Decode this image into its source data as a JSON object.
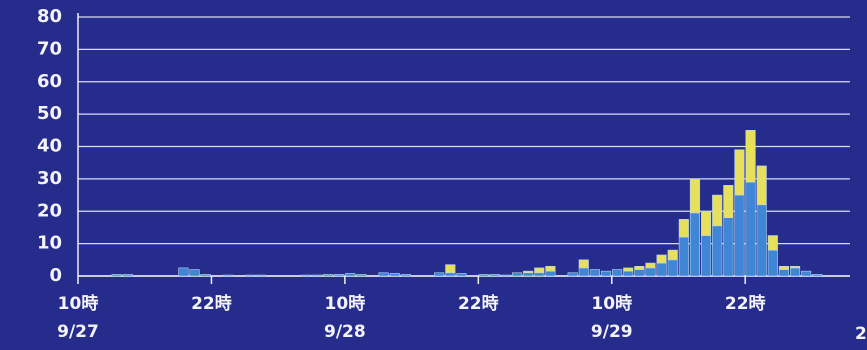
{
  "chart_data": {
    "type": "stacked_bar",
    "categories": [
      "10時",
      null,
      null,
      null,
      null,
      null,
      null,
      null,
      null,
      null,
      null,
      null,
      "22時",
      null,
      null,
      null,
      null,
      null,
      null,
      null,
      null,
      null,
      null,
      null,
      "10時",
      null,
      null,
      null,
      null,
      null,
      null,
      null,
      null,
      null,
      null,
      null,
      "22時",
      null,
      null,
      null,
      null,
      null,
      null,
      null,
      null,
      null,
      null,
      null,
      "10時",
      null,
      null,
      null,
      null,
      null,
      null,
      null,
      null,
      null,
      null,
      null,
      "22時",
      null,
      null,
      null,
      null,
      null,
      null
    ],
    "category_dates": [
      "9/27",
      null,
      null,
      null,
      null,
      null,
      null,
      null,
      null,
      null,
      null,
      null,
      null,
      null,
      null,
      null,
      null,
      null,
      null,
      null,
      null,
      null,
      null,
      null,
      "9/28",
      null,
      null,
      null,
      null,
      null,
      null,
      null,
      null,
      null,
      null,
      null,
      null,
      null,
      null,
      null,
      null,
      null,
      null,
      null,
      null,
      null,
      null,
      null,
      "9/29",
      null,
      null,
      null,
      null,
      null,
      null,
      null,
      null,
      null,
      null,
      null,
      null,
      null,
      null,
      null,
      null,
      null,
      null
    ],
    "series": [
      {
        "color": "#3f86d6",
        "values": [
          0,
          0,
          0,
          0.5,
          0.5,
          0,
          0,
          0,
          0,
          2.5,
          2,
          0.5,
          0,
          0.3,
          0,
          0.3,
          0.3,
          0,
          0,
          0,
          0.3,
          0.3,
          0.5,
          0.5,
          0.8,
          0.5,
          0,
          1,
          0.8,
          0.5,
          0,
          0,
          1,
          1,
          0.8,
          0,
          0.5,
          0.5,
          0.3,
          1,
          1,
          1,
          1.5,
          0,
          1,
          2.5,
          2,
          1.5,
          2,
          1.5,
          2,
          2.5,
          4,
          5,
          12,
          19.5,
          12.5,
          15.5,
          18,
          25,
          29,
          22,
          8,
          2,
          2.5,
          1.5,
          0.5
        ]
      },
      {
        "color": "#e6e05c",
        "values": [
          0,
          0,
          0,
          0,
          0,
          0,
          0,
          0,
          0,
          0,
          0,
          0,
          0,
          0,
          0,
          0,
          0,
          0,
          0,
          0,
          0,
          0,
          0,
          0,
          0,
          0,
          0,
          0,
          0,
          0,
          0,
          0,
          0,
          2.5,
          0,
          0,
          0,
          0,
          0,
          0,
          0.5,
          1.5,
          1.5,
          0,
          0,
          2.5,
          0,
          0,
          0,
          1,
          1,
          1.5,
          2.5,
          3,
          5.5,
          10.5,
          7.5,
          9.5,
          10,
          14,
          16,
          12,
          4.5,
          1,
          0.5,
          0,
          0
        ]
      }
    ],
    "ylim": [
      0,
      80
    ],
    "yticks": [
      0,
      10,
      20,
      30,
      40,
      50,
      60,
      70,
      80
    ],
    "grid": true,
    "page_number": "2"
  }
}
